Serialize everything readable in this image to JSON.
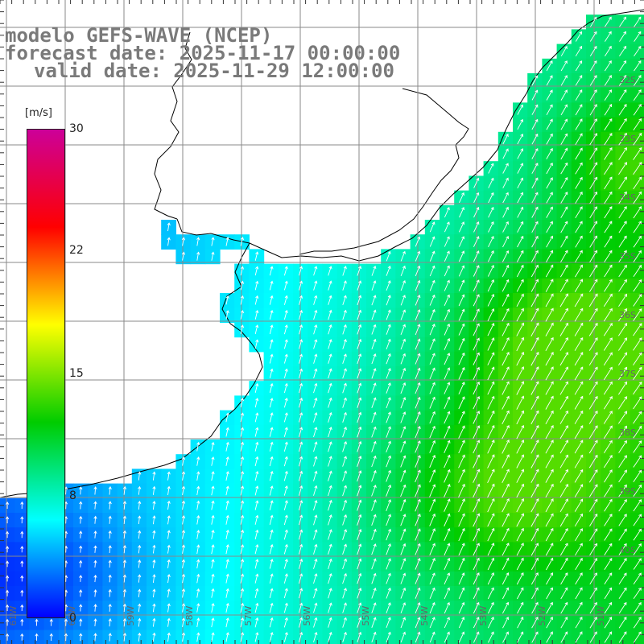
{
  "header": {
    "model_line": "modelo GEFS-WAVE (NCEP)",
    "forecast_line": "forecast date: 2025-11-17 00:00:00",
    "valid_line": "valid date: 2025-11-29 12:00:00"
  },
  "colorbar": {
    "unit": "[m/s]",
    "ticks": [
      "30",
      "22",
      "15",
      "8",
      "0"
    ],
    "min": 0,
    "max": 30,
    "stops": [
      "#0000ff",
      "#00ffff",
      "#00cc00",
      "#ffff00",
      "#ff0000",
      "#cc0099"
    ]
  },
  "map": {
    "lat_labels": [
      "32S",
      "33S",
      "34S",
      "35S",
      "36S",
      "37S",
      "38S",
      "39S",
      "40S"
    ],
    "lon_labels": [
      "61W",
      "60W",
      "59W",
      "58W",
      "57W",
      "56W",
      "55W",
      "54W",
      "53W",
      "52W",
      "51W"
    ],
    "colors": {
      "land": "#ffffff",
      "grid": "#8a8a8a",
      "coast": "#000000",
      "arrow": "#ffffff"
    }
  }
}
